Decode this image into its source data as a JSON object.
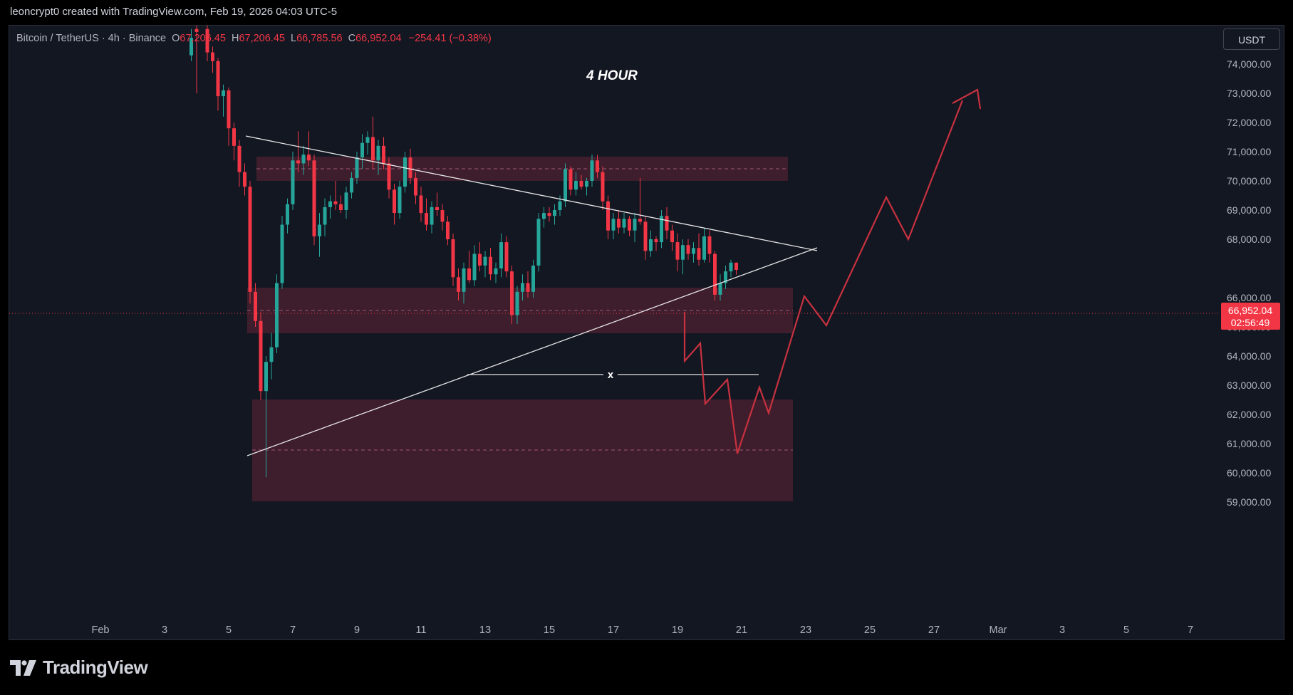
{
  "attribution": "leoncrypt0 created with TradingView.com, Feb 19, 2026 04:03 UTC-5",
  "symbol": {
    "name": "Bitcoin / TetherUS · 4h · Binance",
    "open_label": "O",
    "open": "67,206.45",
    "high_label": "H",
    "high": "67,206.45",
    "low_label": "L",
    "low": "66,785.56",
    "close_label": "C",
    "close": "66,952.04",
    "change": "−254.41 (−0.38%)"
  },
  "currency": "USDT",
  "footer_logo": "TradingView",
  "colors": {
    "background": "#131722",
    "bull": "#26a69a",
    "bear": "#f23645",
    "zone": "#4a1f2f",
    "projection": "#c8313f",
    "trendline": "#e6e6e6"
  },
  "chart_data": {
    "type": "candlestick",
    "title": "4 HOUR",
    "x_labels": [
      "Feb",
      "3",
      "5",
      "7",
      "9",
      "11",
      "13",
      "15",
      "17",
      "19",
      "21",
      "23",
      "25",
      "27",
      "Mar",
      "3",
      "5",
      "7"
    ],
    "y_ticks": [
      "74,000.00",
      "73,000.00",
      "72,000.00",
      "71,000.00",
      "70,000.00",
      "69,000.00",
      "68,000.00",
      "66,000.00",
      "65,000.00",
      "64,000.00",
      "63,000.00",
      "62,000.00",
      "61,000.00",
      "60,000.00",
      "59,000.00"
    ],
    "ylim": [
      58000,
      75500
    ],
    "last_price": "66,952.04",
    "countdown": "02:56:49",
    "annotation": "x",
    "candles": [
      {
        "x": "Feb 3 20:00",
        "o": 74300,
        "h": 75200,
        "l": 74100,
        "c": 74900
      },
      {
        "x": "Feb 4 00:00",
        "o": 75200,
        "h": 75600,
        "l": 73000,
        "c": 75100
      },
      {
        "x": "Feb 4 08:00",
        "o": 75200,
        "h": 75600,
        "l": 74100,
        "c": 74400
      },
      {
        "x": "Feb 4 12:00",
        "o": 74400,
        "h": 74600,
        "l": 73700,
        "c": 74100
      },
      {
        "x": "Feb 4 16:00",
        "o": 74100,
        "h": 74200,
        "l": 72400,
        "c": 72900
      },
      {
        "x": "Feb 4 20:00",
        "o": 72900,
        "h": 73300,
        "l": 72200,
        "c": 73100
      },
      {
        "x": "Feb 5 00:00",
        "o": 73100,
        "h": 73200,
        "l": 71200,
        "c": 71800
      },
      {
        "x": "Feb 5 04:00",
        "o": 71800,
        "h": 72000,
        "l": 70700,
        "c": 71200
      },
      {
        "x": "Feb 5 08:00",
        "o": 71200,
        "h": 71400,
        "l": 69800,
        "c": 70300
      },
      {
        "x": "Feb 5 12:00",
        "o": 70300,
        "h": 70600,
        "l": 69500,
        "c": 69800
      },
      {
        "x": "Feb 5 16:00",
        "o": 69800,
        "h": 70000,
        "l": 65800,
        "c": 66200
      },
      {
        "x": "Feb 5 20:00",
        "o": 66200,
        "h": 66500,
        "l": 65000,
        "c": 65200
      },
      {
        "x": "Feb 6 00:00",
        "o": 65200,
        "h": 65500,
        "l": 62500,
        "c": 62800
      },
      {
        "x": "Feb 6 04:00",
        "o": 62800,
        "h": 64000,
        "l": 59850,
        "c": 63800
      },
      {
        "x": "Feb 6 08:00",
        "o": 63800,
        "h": 64800,
        "l": 63200,
        "c": 64300
      },
      {
        "x": "Feb 6 12:00",
        "o": 64300,
        "h": 66800,
        "l": 64100,
        "c": 66500
      },
      {
        "x": "Feb 6 16:00",
        "o": 66500,
        "h": 68800,
        "l": 66300,
        "c": 68500
      },
      {
        "x": "Feb 6 20:00",
        "o": 68500,
        "h": 69400,
        "l": 68200,
        "c": 69200
      },
      {
        "x": "Feb 7 00:00",
        "o": 69200,
        "h": 71000,
        "l": 69000,
        "c": 70700
      },
      {
        "x": "Feb 7 04:00",
        "o": 70700,
        "h": 71700,
        "l": 70300,
        "c": 70600
      },
      {
        "x": "Feb 7 08:00",
        "o": 70600,
        "h": 71200,
        "l": 70200,
        "c": 70900
      },
      {
        "x": "Feb 7 12:00",
        "o": 70900,
        "h": 71700,
        "l": 70500,
        "c": 70700
      },
      {
        "x": "Feb 7 16:00",
        "o": 70700,
        "h": 70900,
        "l": 67800,
        "c": 68100
      },
      {
        "x": "Feb 7 20:00",
        "o": 68100,
        "h": 68900,
        "l": 67400,
        "c": 68500
      },
      {
        "x": "Feb 8 00:00",
        "o": 68500,
        "h": 69400,
        "l": 68100,
        "c": 69100
      },
      {
        "x": "Feb 8 04:00",
        "o": 69100,
        "h": 69500,
        "l": 68700,
        "c": 69300
      },
      {
        "x": "Feb 8 08:00",
        "o": 69300,
        "h": 70000,
        "l": 69000,
        "c": 69200
      },
      {
        "x": "Feb 8 12:00",
        "o": 69200,
        "h": 69500,
        "l": 68900,
        "c": 69000
      },
      {
        "x": "Feb 8 16:00",
        "o": 69000,
        "h": 69800,
        "l": 68700,
        "c": 69600
      },
      {
        "x": "Feb 8 20:00",
        "o": 69600,
        "h": 70300,
        "l": 69400,
        "c": 70100
      },
      {
        "x": "Feb 9 00:00",
        "o": 70100,
        "h": 71000,
        "l": 69900,
        "c": 70800
      },
      {
        "x": "Feb 9 04:00",
        "o": 70800,
        "h": 71600,
        "l": 70400,
        "c": 71300
      },
      {
        "x": "Feb 9 08:00",
        "o": 71300,
        "h": 71700,
        "l": 70900,
        "c": 71500
      },
      {
        "x": "Feb 9 12:00",
        "o": 71500,
        "h": 72200,
        "l": 70400,
        "c": 70700
      },
      {
        "x": "Feb 9 16:00",
        "o": 70700,
        "h": 71400,
        "l": 70200,
        "c": 71200
      },
      {
        "x": "Feb 9 20:00",
        "o": 71200,
        "h": 71500,
        "l": 70400,
        "c": 70600
      },
      {
        "x": "Feb 10 00:00",
        "o": 70600,
        "h": 70800,
        "l": 69400,
        "c": 69700
      },
      {
        "x": "Feb 10 04:00",
        "o": 69700,
        "h": 69900,
        "l": 68500,
        "c": 68900
      },
      {
        "x": "Feb 10 08:00",
        "o": 68900,
        "h": 70000,
        "l": 68700,
        "c": 69800
      },
      {
        "x": "Feb 10 12:00",
        "o": 69800,
        "h": 71000,
        "l": 69600,
        "c": 70800
      },
      {
        "x": "Feb 10 16:00",
        "o": 70800,
        "h": 71100,
        "l": 69900,
        "c": 70100
      },
      {
        "x": "Feb 10 20:00",
        "o": 70100,
        "h": 70300,
        "l": 69200,
        "c": 69500
      },
      {
        "x": "Feb 11 00:00",
        "o": 69500,
        "h": 69800,
        "l": 68600,
        "c": 68900
      },
      {
        "x": "Feb 11 04:00",
        "o": 68900,
        "h": 69400,
        "l": 68300,
        "c": 68500
      },
      {
        "x": "Feb 11 08:00",
        "o": 68500,
        "h": 69300,
        "l": 68200,
        "c": 69100
      },
      {
        "x": "Feb 11 12:00",
        "o": 69100,
        "h": 69600,
        "l": 68800,
        "c": 69000
      },
      {
        "x": "Feb 11 16:00",
        "o": 69000,
        "h": 69200,
        "l": 68300,
        "c": 68600
      },
      {
        "x": "Feb 11 20:00",
        "o": 68600,
        "h": 68800,
        "l": 67800,
        "c": 68000
      },
      {
        "x": "Feb 12 00:00",
        "o": 68000,
        "h": 68200,
        "l": 66400,
        "c": 66700
      },
      {
        "x": "Feb 12 04:00",
        "o": 66700,
        "h": 67000,
        "l": 65900,
        "c": 66200
      },
      {
        "x": "Feb 12 08:00",
        "o": 66200,
        "h": 67200,
        "l": 65800,
        "c": 67000
      },
      {
        "x": "Feb 12 12:00",
        "o": 67000,
        "h": 67600,
        "l": 66500,
        "c": 66600
      },
      {
        "x": "Feb 12 16:00",
        "o": 66600,
        "h": 67800,
        "l": 66400,
        "c": 67500
      },
      {
        "x": "Feb 12 20:00",
        "o": 67500,
        "h": 67900,
        "l": 66900,
        "c": 67100
      },
      {
        "x": "Feb 13 00:00",
        "o": 67100,
        "h": 67600,
        "l": 66700,
        "c": 67400
      },
      {
        "x": "Feb 13 04:00",
        "o": 67400,
        "h": 67700,
        "l": 66600,
        "c": 66800
      },
      {
        "x": "Feb 13 08:00",
        "o": 66800,
        "h": 67200,
        "l": 66500,
        "c": 67000
      },
      {
        "x": "Feb 13 12:00",
        "o": 67000,
        "h": 68200,
        "l": 66700,
        "c": 67900
      },
      {
        "x": "Feb 13 16:00",
        "o": 67900,
        "h": 68100,
        "l": 66700,
        "c": 66900
      },
      {
        "x": "Feb 13 20:00",
        "o": 66900,
        "h": 67100,
        "l": 65100,
        "c": 65400
      },
      {
        "x": "Feb 14 00:00",
        "o": 65400,
        "h": 66400,
        "l": 65100,
        "c": 66200
      },
      {
        "x": "Feb 14 04:00",
        "o": 66200,
        "h": 66800,
        "l": 65900,
        "c": 66500
      },
      {
        "x": "Feb 14 08:00",
        "o": 66500,
        "h": 66900,
        "l": 66000,
        "c": 66200
      },
      {
        "x": "Feb 14 12:00",
        "o": 66200,
        "h": 67300,
        "l": 66000,
        "c": 67100
      },
      {
        "x": "Feb 14 16:00",
        "o": 67100,
        "h": 68900,
        "l": 66900,
        "c": 68700
      },
      {
        "x": "Feb 14 20:00",
        "o": 68700,
        "h": 69100,
        "l": 68400,
        "c": 68900
      },
      {
        "x": "Feb 15 00:00",
        "o": 68900,
        "h": 69100,
        "l": 68600,
        "c": 68800
      },
      {
        "x": "Feb 15 04:00",
        "o": 68800,
        "h": 69200,
        "l": 68500,
        "c": 69000
      },
      {
        "x": "Feb 15 08:00",
        "o": 69000,
        "h": 69500,
        "l": 68800,
        "c": 69300
      },
      {
        "x": "Feb 15 12:00",
        "o": 69300,
        "h": 70600,
        "l": 69100,
        "c": 70400
      },
      {
        "x": "Feb 15 16:00",
        "o": 70400,
        "h": 70500,
        "l": 69500,
        "c": 69700
      },
      {
        "x": "Feb 15 20:00",
        "o": 69700,
        "h": 70300,
        "l": 69500,
        "c": 70000
      },
      {
        "x": "Feb 16 00:00",
        "o": 70000,
        "h": 70200,
        "l": 69700,
        "c": 69800
      },
      {
        "x": "Feb 16 04:00",
        "o": 69800,
        "h": 70100,
        "l": 69500,
        "c": 70000
      },
      {
        "x": "Feb 16 08:00",
        "o": 70000,
        "h": 70900,
        "l": 69800,
        "c": 70700
      },
      {
        "x": "Feb 16 12:00",
        "o": 70700,
        "h": 70900,
        "l": 70100,
        "c": 70300
      },
      {
        "x": "Feb 16 16:00",
        "o": 70300,
        "h": 70500,
        "l": 69000,
        "c": 69300
      },
      {
        "x": "Feb 16 20:00",
        "o": 69300,
        "h": 69500,
        "l": 68000,
        "c": 68300
      },
      {
        "x": "Feb 17 00:00",
        "o": 68300,
        "h": 68900,
        "l": 68000,
        "c": 68700
      },
      {
        "x": "Feb 17 04:00",
        "o": 68700,
        "h": 69000,
        "l": 68200,
        "c": 68400
      },
      {
        "x": "Feb 17 08:00",
        "o": 68400,
        "h": 68900,
        "l": 68200,
        "c": 68700
      },
      {
        "x": "Feb 17 12:00",
        "o": 68700,
        "h": 68800,
        "l": 68100,
        "c": 68300
      },
      {
        "x": "Feb 17 16:00",
        "o": 68300,
        "h": 68900,
        "l": 67900,
        "c": 68700
      },
      {
        "x": "Feb 17 20:00",
        "o": 68700,
        "h": 70100,
        "l": 68500,
        "c": 68600
      },
      {
        "x": "Feb 18 00:00",
        "o": 68600,
        "h": 68800,
        "l": 67300,
        "c": 67600
      },
      {
        "x": "Feb 18 04:00",
        "o": 67600,
        "h": 68300,
        "l": 67400,
        "c": 68000
      },
      {
        "x": "Feb 18 08:00",
        "o": 68000,
        "h": 68100,
        "l": 67600,
        "c": 67900
      },
      {
        "x": "Feb 18 12:00",
        "o": 67900,
        "h": 69000,
        "l": 67700,
        "c": 68800
      },
      {
        "x": "Feb 18 16:00",
        "o": 68800,
        "h": 69100,
        "l": 68000,
        "c": 68300
      },
      {
        "x": "Feb 18 20:00",
        "o": 68300,
        "h": 68500,
        "l": 67600,
        "c": 67900
      },
      {
        "x": "Feb 19 00:00",
        "o": 67900,
        "h": 68200,
        "l": 66900,
        "c": 67300
      },
      {
        "x": "Feb 19 04:00",
        "o": 67300,
        "h": 68000,
        "l": 66800,
        "c": 67800
      },
      {
        "x": "Feb 19 08:00",
        "o": 67800,
        "h": 68000,
        "l": 67300,
        "c": 67500
      },
      {
        "x": "Feb 19 12:00",
        "o": 67500,
        "h": 67900,
        "l": 67200,
        "c": 67700
      },
      {
        "x": "Feb 19 16:00",
        "o": 67700,
        "h": 68200,
        "l": 67100,
        "c": 67300
      },
      {
        "x": "Feb 19 20:00",
        "o": 67300,
        "h": 68400,
        "l": 67200,
        "c": 68100
      },
      {
        "x": "Feb 20 00:00",
        "o": 68100,
        "h": 68300,
        "l": 67200,
        "c": 67500
      },
      {
        "x": "Feb 20 04:00",
        "o": 67500,
        "h": 67600,
        "l": 65900,
        "c": 66100
      },
      {
        "x": "Feb 20 08:00",
        "o": 66100,
        "h": 66800,
        "l": 65900,
        "c": 66500
      },
      {
        "x": "Feb 20 12:00",
        "o": 66500,
        "h": 67100,
        "l": 66300,
        "c": 66900
      },
      {
        "x": "Feb 20 16:00",
        "o": 66900,
        "h": 67300,
        "l": 66700,
        "c": 67200
      },
      {
        "x": "Feb 20 20:00",
        "o": 67200,
        "h": 67206,
        "l": 66786,
        "c": 66952
      }
    ]
  }
}
